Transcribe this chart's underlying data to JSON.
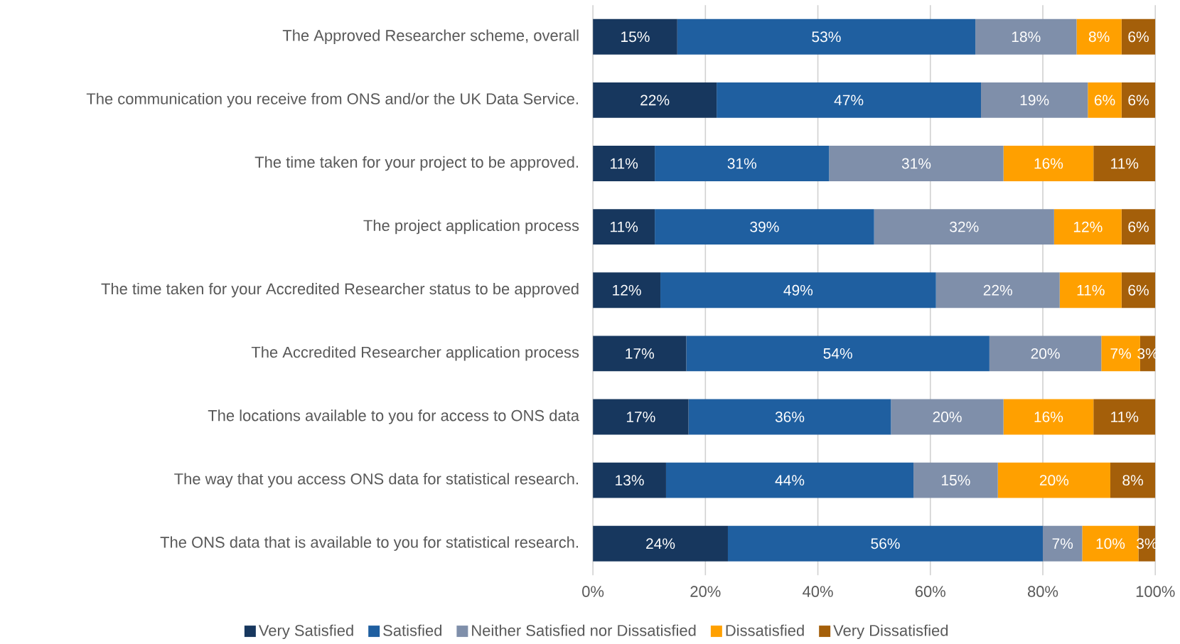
{
  "chart_data": {
    "type": "bar",
    "orientation": "horizontal",
    "stacked": true,
    "grid": "x",
    "legend": "bottom",
    "categories": [
      "The Approved Researcher scheme, overall",
      "The communication you receive from ONS and/or the UK Data Service.",
      "The time taken for your project to be approved.",
      "The project application process",
      "The time taken for your Accredited Researcher status to be approved",
      "The Accredited Researcher application process",
      "The locations available to you for access to ONS data",
      "The way that you access ONS data for statistical research.",
      "The ONS data that is available to you for statistical research."
    ],
    "xlim": [
      0,
      100
    ],
    "xticks": [
      {
        "value": 0,
        "label": "0%"
      },
      {
        "value": 20,
        "label": "20%"
      },
      {
        "value": 40,
        "label": "40%"
      },
      {
        "value": 60,
        "label": "60%"
      },
      {
        "value": 80,
        "label": "80%"
      },
      {
        "value": 100,
        "label": "100%"
      }
    ],
    "series": [
      {
        "name": "Very Satisfied",
        "color": "#17375e",
        "values": [
          15,
          22,
          11,
          11,
          12,
          16.6,
          17,
          13,
          24
        ],
        "value_labels": [
          "15%",
          "22%",
          "11%",
          "11%",
          "12%",
          "17%",
          "17%",
          "13%",
          "24%"
        ]
      },
      {
        "name": "Satisfied",
        "color": "#1f5fa0",
        "values": [
          53,
          47,
          31,
          39,
          49,
          53.9,
          36,
          44,
          56
        ],
        "value_labels": [
          "53%",
          "47%",
          "31%",
          "39%",
          "49%",
          "54%",
          "36%",
          "44%",
          "56%"
        ]
      },
      {
        "name": "Neither Satisfied nor Dissatisfied",
        "color": "#7f8faa",
        "values": [
          18,
          19,
          31,
          32,
          22,
          19.9,
          20,
          15,
          7
        ],
        "value_labels": [
          "18%",
          "19%",
          "31%",
          "32%",
          "22%",
          "20%",
          "20%",
          "15%",
          "7%"
        ]
      },
      {
        "name": "Dissatisfied",
        "color": "#ffa000",
        "values": [
          8,
          6,
          16,
          12,
          11,
          6.9,
          16,
          20,
          10
        ],
        "value_labels": [
          "8%",
          "6%",
          "16%",
          "12%",
          "11%",
          "7%",
          "16%",
          "20%",
          "10%"
        ]
      },
      {
        "name": "Very Dissatisfied",
        "color": "#a45f0a",
        "values": [
          6,
          6,
          11,
          6,
          6,
          2.7,
          11,
          8,
          3
        ],
        "value_labels": [
          "6%",
          "6%",
          "11%",
          "6%",
          "6%",
          "3%",
          "11%",
          "8%",
          "3%"
        ]
      }
    ]
  }
}
